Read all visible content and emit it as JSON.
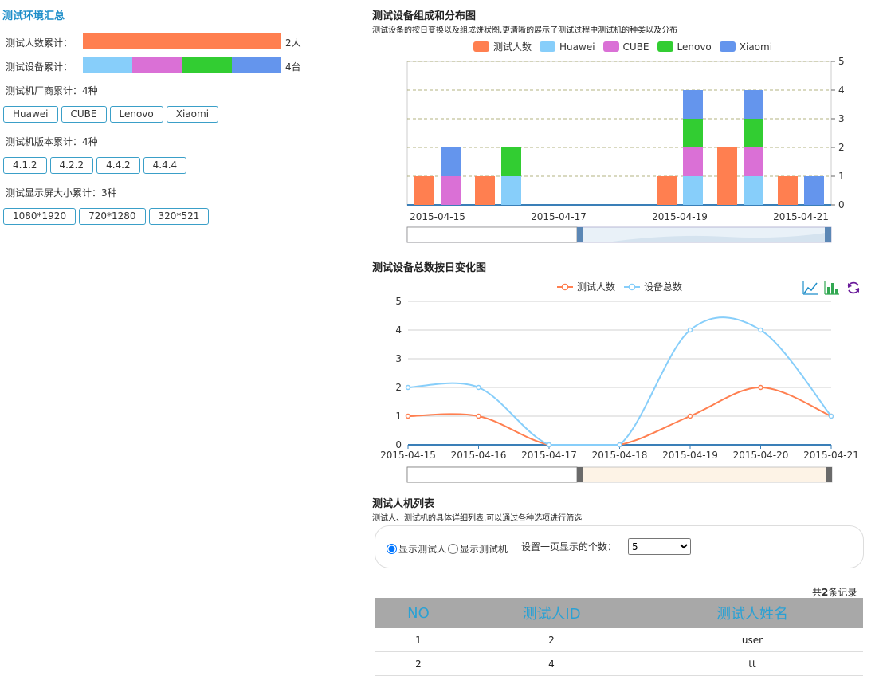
{
  "summary": {
    "title": "测试环境汇总",
    "people_label": "测试人数累计：",
    "people_value": "2人",
    "devices_label": "测试设备累计：",
    "devices_value": "4台",
    "vendors_label": "测试机厂商累计：4种",
    "vendors": [
      "Huawei",
      "CUBE",
      "Lenovo",
      "Xiaomi"
    ],
    "versions_label": "测试机版本累计：4种",
    "versions": [
      "4.1.2",
      "4.2.2",
      "4.4.2",
      "4.4.4"
    ],
    "screens_label": "测试显示屏大小累计：3种",
    "screens": [
      "1080*1920",
      "720*1280",
      "320*521"
    ]
  },
  "colors": {
    "people": "#ff7f50",
    "huawei": "#87cefa",
    "cube": "#da70d6",
    "lenovo": "#32cd32",
    "xiaomi": "#6495ed"
  },
  "bar_section": {
    "title": "测试设备组成和分布图",
    "subtitle": "测试设备的按日变换以及组成饼状图,更清晰的展示了测试过程中测试机的种类以及分布",
    "legend": [
      "测试人数",
      "Huawei",
      "CUBE",
      "Lenovo",
      "Xiaomi"
    ]
  },
  "line_section": {
    "title": "测试设备总数按日变化图",
    "legend": [
      "测试人数",
      "设备总数"
    ],
    "tools": [
      "line-chart-icon",
      "bar-chart-icon",
      "refresh-icon"
    ]
  },
  "chart_data": [
    {
      "type": "bar",
      "stacked": true,
      "x_tick_labels": [
        "2015-04-15",
        "2015-04-17",
        "2015-04-19",
        "2015-04-21"
      ],
      "categories": [
        "2015-04-15",
        "2015-04-16",
        "2015-04-17",
        "2015-04-18",
        "2015-04-19",
        "2015-04-20",
        "2015-04-21"
      ],
      "ylim": [
        0,
        5
      ],
      "yticks": [
        0,
        1,
        2,
        3,
        4,
        5
      ],
      "y_axis_side": "right",
      "legend_position": "top",
      "series": [
        {
          "name": "测试人数",
          "stack": "people",
          "values": [
            1,
            1,
            0,
            0,
            1,
            2,
            1
          ]
        },
        {
          "name": "Huawei",
          "stack": "device",
          "values": [
            0,
            1,
            0,
            0,
            1,
            1,
            0
          ]
        },
        {
          "name": "CUBE",
          "stack": "device",
          "values": [
            1,
            0,
            0,
            0,
            1,
            1,
            0
          ]
        },
        {
          "name": "Lenovo",
          "stack": "device",
          "values": [
            0,
            1,
            0,
            0,
            1,
            1,
            0
          ]
        },
        {
          "name": "Xiaomi",
          "stack": "device",
          "values": [
            1,
            0,
            0,
            0,
            1,
            1,
            1
          ]
        }
      ]
    },
    {
      "type": "line",
      "smooth": true,
      "categories": [
        "2015-04-15",
        "2015-04-16",
        "2015-04-17",
        "2015-04-18",
        "2015-04-19",
        "2015-04-20",
        "2015-04-21"
      ],
      "ylim": [
        0,
        5
      ],
      "yticks": [
        0,
        1,
        2,
        3,
        4,
        5
      ],
      "legend_position": "top",
      "series": [
        {
          "name": "测试人数",
          "values": [
            1,
            1,
            0,
            0,
            1,
            2,
            1
          ]
        },
        {
          "name": "设备总数",
          "values": [
            2,
            2,
            0,
            0,
            4,
            4,
            1
          ]
        }
      ]
    }
  ],
  "list_section": {
    "title": "测试人机列表",
    "subtitle": "测试人、测试机的具体详细列表,可以通过各种选项进行筛选",
    "radio_people": "显示测试人",
    "radio_devices": "显示测试机",
    "radio_selected": "显示测试人",
    "page_size_label": "设置一页显示的个数：",
    "page_size_value": "5",
    "record_count_prefix": "共",
    "record_count": "2",
    "record_count_suffix": "条记录",
    "columns": [
      "NO",
      "测试人ID",
      "测试人姓名"
    ],
    "rows": [
      [
        "1",
        "2",
        "user"
      ],
      [
        "2",
        "4",
        "tt"
      ]
    ]
  }
}
